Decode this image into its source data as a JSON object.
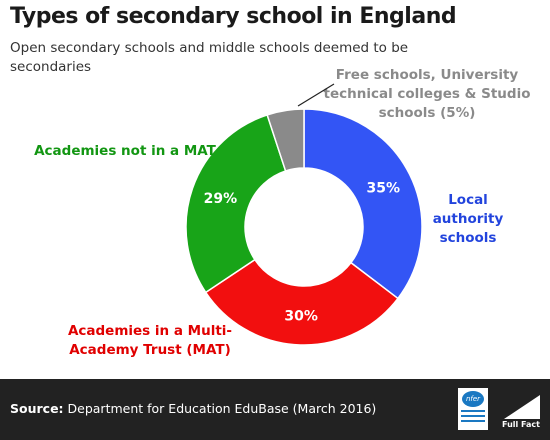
{
  "title": "Types of secondary school in England",
  "subtitle": "Open secondary schools and middle schools deemed to be secondaries",
  "chart_data": {
    "type": "pie",
    "donut": true,
    "slices": [
      {
        "label_lines": [
          "Local",
          "authority",
          "schools"
        ],
        "value": 35,
        "value_label": "35%",
        "color": "#3355f5"
      },
      {
        "label_lines": [
          "Academies in a Multi-",
          "Academy Trust (MAT)"
        ],
        "value": 30,
        "value_label": "30%",
        "color": "#f20f0f"
      },
      {
        "label_lines": [
          "Academies not in a MAT"
        ],
        "value": 29,
        "value_label": "29%",
        "color": "#18a418"
      },
      {
        "label_lines": [
          "Free schools, University",
          "technical colleges & Studio",
          "schools (5%)"
        ],
        "value": 5,
        "value_label": "",
        "color": "#8a8a8a"
      }
    ]
  },
  "footer": {
    "source_label": "Source:",
    "source_text": " Department for Education EduBase (March 2016)",
    "nfer_logo": "nfer",
    "brand": "Full Fact"
  }
}
